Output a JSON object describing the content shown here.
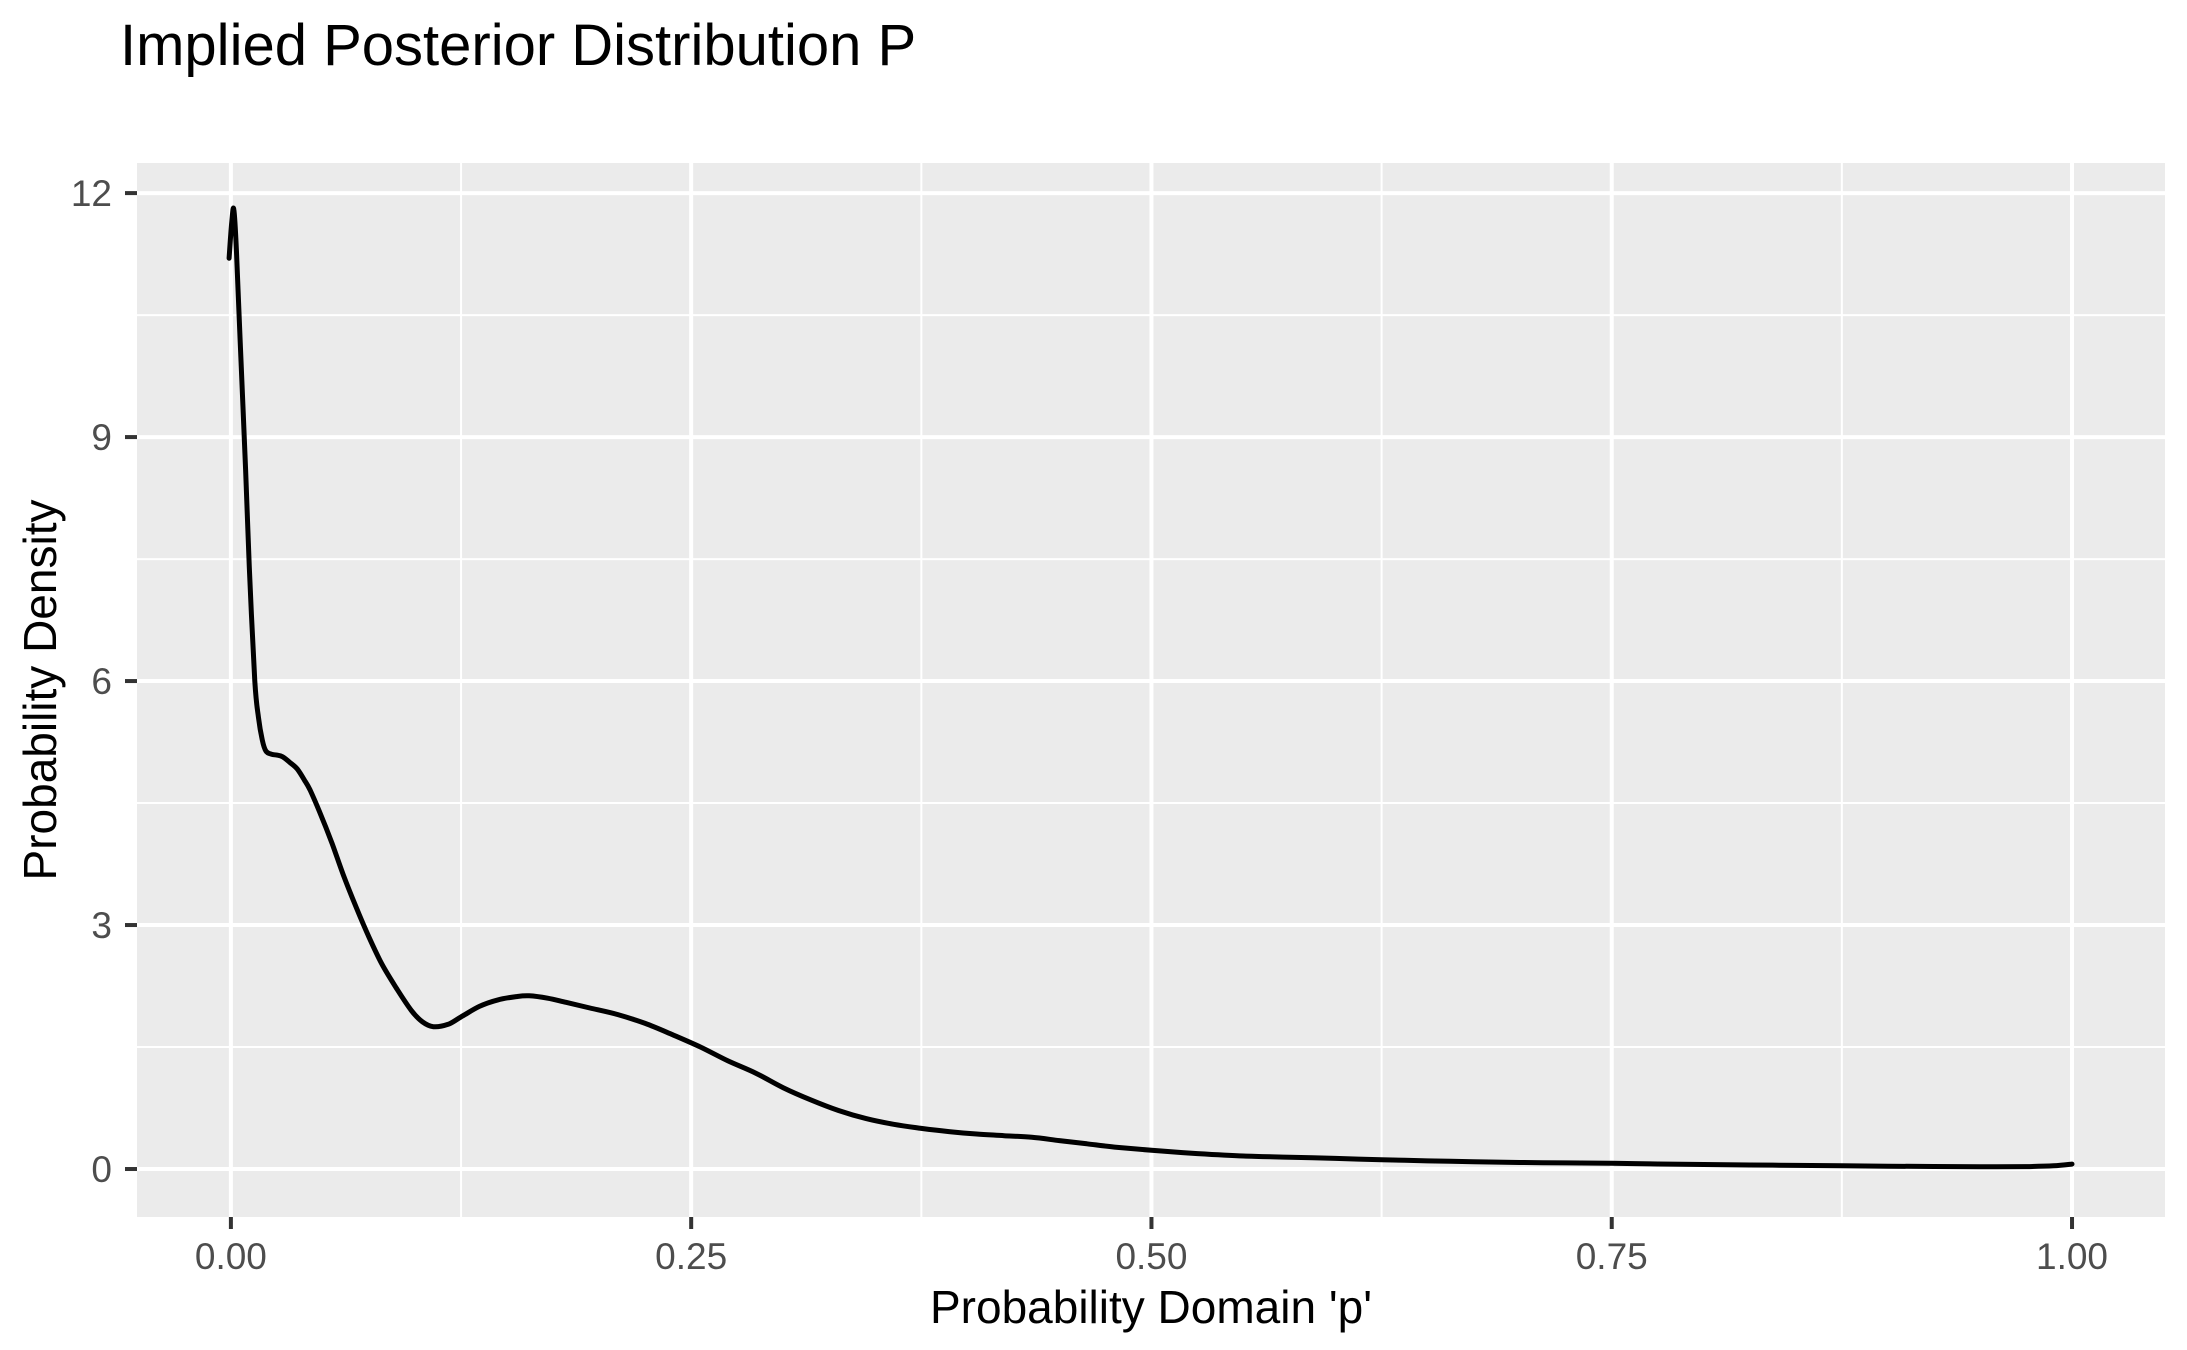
{
  "chart_data": {
    "type": "line",
    "subtype": "density-curve",
    "title": "Implied Posterior Distribution P",
    "xlabel": "Probability Domain 'p'",
    "ylabel": "Probability Density",
    "xlim": [
      -0.051,
      1.0505
    ],
    "ylim": [
      -0.59,
      12.37
    ],
    "grid": "on",
    "legend": "none",
    "x_major_ticks": {
      "values": [
        0.0,
        0.25,
        0.5,
        0.75,
        1.0
      ],
      "labels": [
        "0.00",
        "0.25",
        "0.50",
        "0.75",
        "1.00"
      ]
    },
    "y_major_ticks": {
      "values": [
        0,
        3,
        6,
        9,
        12
      ],
      "labels": [
        "0",
        "3",
        "6",
        "9",
        "12"
      ]
    },
    "x_minor_ticks": [
      0.125,
      0.375,
      0.625,
      0.875
    ],
    "y_minor_ticks": [
      1.5,
      4.5,
      7.5,
      10.5
    ],
    "series": [
      {
        "name": "posterior-density",
        "x": [
          -0.001,
          0.0005,
          0.0016,
          0.003,
          0.005,
          0.008,
          0.01,
          0.013,
          0.015,
          0.017,
          0.019,
          0.022,
          0.025,
          0.028,
          0.032,
          0.036,
          0.04,
          0.043,
          0.048,
          0.055,
          0.061,
          0.068,
          0.075,
          0.082,
          0.09,
          0.098,
          0.104,
          0.11,
          0.118,
          0.125,
          0.135,
          0.145,
          0.155,
          0.162,
          0.172,
          0.182,
          0.195,
          0.21,
          0.225,
          0.24,
          0.255,
          0.27,
          0.285,
          0.3,
          0.315,
          0.33,
          0.345,
          0.36,
          0.375,
          0.39,
          0.405,
          0.42,
          0.435,
          0.45,
          0.465,
          0.48,
          0.5,
          0.525,
          0.55,
          0.575,
          0.6,
          0.625,
          0.65,
          0.675,
          0.7,
          0.725,
          0.75,
          0.775,
          0.8,
          0.825,
          0.85,
          0.875,
          0.9,
          0.925,
          0.95,
          0.975,
          0.99,
          1.0
        ],
        "y": [
          11.2,
          11.65,
          11.8,
          11.3,
          10.2,
          8.6,
          7.4,
          6.0,
          5.55,
          5.28,
          5.14,
          5.1,
          5.09,
          5.07,
          5.0,
          4.92,
          4.78,
          4.66,
          4.4,
          4.0,
          3.62,
          3.22,
          2.85,
          2.52,
          2.22,
          1.95,
          1.81,
          1.75,
          1.78,
          1.87,
          2.0,
          2.08,
          2.12,
          2.13,
          2.1,
          2.05,
          1.98,
          1.9,
          1.79,
          1.65,
          1.5,
          1.33,
          1.18,
          1.0,
          0.85,
          0.72,
          0.62,
          0.55,
          0.5,
          0.46,
          0.43,
          0.41,
          0.39,
          0.35,
          0.31,
          0.27,
          0.23,
          0.19,
          0.16,
          0.145,
          0.13,
          0.115,
          0.1,
          0.09,
          0.08,
          0.075,
          0.07,
          0.062,
          0.055,
          0.05,
          0.045,
          0.04,
          0.035,
          0.031,
          0.028,
          0.03,
          0.04,
          0.06
        ]
      }
    ],
    "colors": {
      "panel_background": "#EBEBEB",
      "grid_line": "#FFFFFF",
      "curve": "#000000",
      "tick_label": "#4D4D4D",
      "tick_mark": "#333333",
      "title_text": "#000000"
    },
    "peak_annotation": {
      "peak_x": 0.002,
      "peak_y": 11.8
    }
  }
}
